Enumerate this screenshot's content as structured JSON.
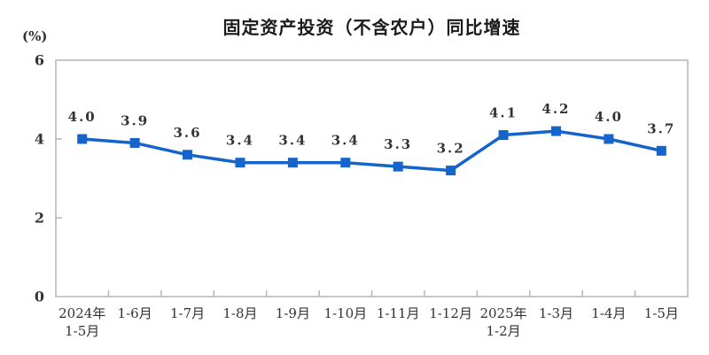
{
  "chart_data": {
    "type": "line",
    "title": "固定资产投资（不含农户）同比增速",
    "unit": "(%)",
    "categories": [
      "2024年\n1-5月",
      "1-6月",
      "1-7月",
      "1-8月",
      "1-9月",
      "1-10月",
      "1-11月",
      "1-12月",
      "2025年\n1-2月",
      "1-3月",
      "1-4月",
      "1-5月"
    ],
    "values": [
      4.0,
      3.9,
      3.6,
      3.4,
      3.4,
      3.4,
      3.3,
      3.2,
      4.1,
      4.2,
      4.0,
      3.7
    ],
    "point_labels": [
      "4.0",
      "3.9",
      "3.6",
      "3.4",
      "3.4",
      "3.4",
      "3.3",
      "3.2",
      "4.1",
      "4.2",
      "4.0",
      "3.7"
    ],
    "xlabel": "",
    "ylabel": "(%)",
    "ylim": [
      0,
      6
    ],
    "yticks": [
      0,
      2,
      4,
      6
    ],
    "grid": false,
    "legend_position": "none",
    "colors": {
      "series": "#1464cc",
      "axis": "#b5b5b5",
      "text": "#333333",
      "title": "#1a1a1a"
    }
  }
}
